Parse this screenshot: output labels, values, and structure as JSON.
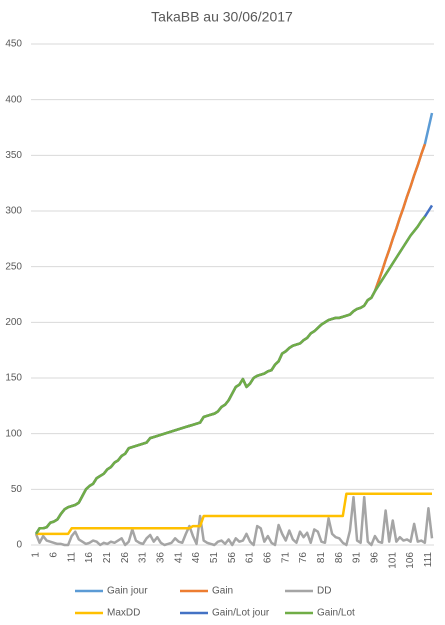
{
  "chart_data": {
    "type": "line",
    "title": "TakaBB au 30/06/2017",
    "x": [
      1,
      2,
      3,
      4,
      5,
      6,
      7,
      8,
      9,
      10,
      11,
      12,
      13,
      14,
      15,
      16,
      17,
      18,
      19,
      20,
      21,
      22,
      23,
      24,
      25,
      26,
      27,
      28,
      29,
      30,
      31,
      32,
      33,
      34,
      35,
      36,
      37,
      38,
      39,
      40,
      41,
      42,
      43,
      44,
      45,
      46,
      47,
      48,
      49,
      50,
      51,
      52,
      53,
      54,
      55,
      56,
      57,
      58,
      59,
      60,
      61,
      62,
      63,
      64,
      65,
      66,
      67,
      68,
      69,
      70,
      71,
      72,
      73,
      74,
      75,
      76,
      77,
      78,
      79,
      80,
      81,
      82,
      83,
      84,
      85,
      86,
      87,
      88,
      89,
      90,
      91,
      92,
      93,
      94,
      95,
      96,
      97,
      98,
      99,
      100,
      101,
      102,
      103,
      104,
      105,
      106,
      107,
      108,
      109,
      110,
      111,
      112
    ],
    "xlim": [
      1,
      112
    ],
    "xticks": [
      1,
      6,
      11,
      16,
      21,
      26,
      31,
      36,
      41,
      46,
      51,
      56,
      61,
      66,
      71,
      76,
      81,
      86,
      91,
      96,
      101,
      106,
      111
    ],
    "ylim": [
      0,
      450
    ],
    "yticks": [
      0,
      50,
      100,
      150,
      200,
      250,
      300,
      350,
      400,
      450
    ],
    "grid": true,
    "series": [
      {
        "name": "Gain jour",
        "color": "#5b9bd5",
        "values": [
          10,
          15,
          15,
          16,
          20,
          21,
          23,
          28,
          32,
          34,
          35,
          36,
          38,
          44,
          50,
          53,
          55,
          60,
          62,
          64,
          68,
          70,
          74,
          76,
          80,
          82,
          87,
          88,
          89,
          90,
          91,
          92,
          96,
          97,
          98,
          99,
          100,
          101,
          102,
          103,
          104,
          105,
          106,
          107,
          108,
          109,
          110,
          115,
          116,
          117,
          118,
          120,
          124,
          126,
          130,
          136,
          142,
          144,
          149,
          142,
          145,
          150,
          152,
          153,
          154,
          156,
          157,
          162,
          165,
          172,
          174,
          177,
          179,
          180,
          181,
          184,
          186,
          190,
          192,
          195,
          198,
          200,
          202,
          203,
          204,
          204,
          205,
          206,
          207,
          210,
          212,
          213,
          215,
          220,
          222,
          228,
          237,
          246,
          256,
          265,
          275,
          284,
          294,
          303,
          313,
          322,
          332,
          341,
          351,
          360,
          374,
          388
        ]
      },
      {
        "name": "Gain",
        "color": "#ed7d31",
        "values": [
          10,
          15,
          15,
          16,
          20,
          21,
          23,
          28,
          32,
          34,
          35,
          36,
          38,
          44,
          50,
          53,
          55,
          60,
          62,
          64,
          68,
          70,
          74,
          76,
          80,
          82,
          87,
          88,
          89,
          90,
          91,
          92,
          96,
          97,
          98,
          99,
          100,
          101,
          102,
          103,
          104,
          105,
          106,
          107,
          108,
          109,
          110,
          115,
          116,
          117,
          118,
          120,
          124,
          126,
          130,
          136,
          142,
          144,
          149,
          142,
          145,
          150,
          152,
          153,
          154,
          156,
          157,
          162,
          165,
          172,
          174,
          177,
          179,
          180,
          181,
          184,
          186,
          190,
          192,
          195,
          198,
          200,
          202,
          203,
          204,
          204,
          205,
          206,
          207,
          210,
          212,
          213,
          215,
          220,
          222,
          228,
          237,
          246,
          256,
          265,
          275,
          284,
          294,
          303,
          313,
          322,
          332,
          341,
          351,
          360,
          null,
          null
        ]
      },
      {
        "name": "DD",
        "color": "#a5a5a5",
        "values": [
          10,
          2,
          8,
          4,
          3,
          2,
          1,
          1,
          0,
          0,
          8,
          12,
          5,
          3,
          1,
          2,
          4,
          3,
          0,
          2,
          1,
          3,
          2,
          4,
          6,
          0,
          3,
          14,
          4,
          2,
          1,
          6,
          9,
          3,
          7,
          2,
          0,
          1,
          2,
          6,
          3,
          2,
          10,
          17,
          8,
          1,
          26,
          4,
          2,
          1,
          0,
          3,
          4,
          1,
          5,
          0,
          6,
          3,
          4,
          10,
          3,
          0,
          17,
          15,
          3,
          8,
          2,
          0,
          18,
          10,
          4,
          13,
          5,
          2,
          12,
          7,
          11,
          2,
          14,
          12,
          3,
          2,
          24,
          10,
          7,
          6,
          2,
          0,
          13,
          43,
          4,
          2,
          43,
          3,
          0,
          8,
          3,
          2,
          31,
          3,
          22,
          3,
          7,
          4,
          5,
          3,
          19,
          3,
          4,
          2,
          33,
          6
        ]
      },
      {
        "name": "MaxDD",
        "color": "#ffc000",
        "values": [
          10,
          10,
          10,
          10,
          10,
          10,
          10,
          10,
          10,
          10,
          15,
          15,
          15,
          15,
          15,
          15,
          15,
          15,
          15,
          15,
          15,
          15,
          15,
          15,
          15,
          15,
          15,
          15,
          15,
          15,
          15,
          15,
          15,
          15,
          15,
          15,
          15,
          15,
          15,
          15,
          15,
          15,
          15,
          15,
          17,
          17,
          17,
          26,
          26,
          26,
          26,
          26,
          26,
          26,
          26,
          26,
          26,
          26,
          26,
          26,
          26,
          26,
          26,
          26,
          26,
          26,
          26,
          26,
          26,
          26,
          26,
          26,
          26,
          26,
          26,
          26,
          26,
          26,
          26,
          26,
          26,
          26,
          26,
          26,
          26,
          26,
          26,
          46,
          46,
          46,
          46,
          46,
          46,
          46,
          46,
          46,
          46,
          46,
          46,
          46,
          46,
          46,
          46,
          46,
          46,
          46,
          46,
          46,
          46,
          46,
          46,
          46
        ]
      },
      {
        "name": "Gain/Lot jour",
        "color": "#4472c4",
        "values": [
          10,
          15,
          15,
          16,
          20,
          21,
          23,
          28,
          32,
          34,
          35,
          36,
          38,
          44,
          50,
          53,
          55,
          60,
          62,
          64,
          68,
          70,
          74,
          76,
          80,
          82,
          87,
          88,
          89,
          90,
          91,
          92,
          96,
          97,
          98,
          99,
          100,
          101,
          102,
          103,
          104,
          105,
          106,
          107,
          108,
          109,
          110,
          115,
          116,
          117,
          118,
          120,
          124,
          126,
          130,
          136,
          142,
          144,
          149,
          142,
          145,
          150,
          152,
          153,
          154,
          156,
          157,
          162,
          165,
          172,
          174,
          177,
          179,
          180,
          181,
          184,
          186,
          190,
          192,
          195,
          198,
          200,
          202,
          203,
          204,
          204,
          205,
          206,
          207,
          210,
          212,
          213,
          215,
          220,
          222,
          228,
          233,
          238,
          243,
          248,
          253,
          258,
          263,
          268,
          273,
          278,
          282,
          286,
          291,
          295,
          300,
          305
        ]
      },
      {
        "name": "Gain/Lot",
        "color": "#70ad47",
        "values": [
          10,
          15,
          15,
          16,
          20,
          21,
          23,
          28,
          32,
          34,
          35,
          36,
          38,
          44,
          50,
          53,
          55,
          60,
          62,
          64,
          68,
          70,
          74,
          76,
          80,
          82,
          87,
          88,
          89,
          90,
          91,
          92,
          96,
          97,
          98,
          99,
          100,
          101,
          102,
          103,
          104,
          105,
          106,
          107,
          108,
          109,
          110,
          115,
          116,
          117,
          118,
          120,
          124,
          126,
          130,
          136,
          142,
          144,
          149,
          142,
          145,
          150,
          152,
          153,
          154,
          156,
          157,
          162,
          165,
          172,
          174,
          177,
          179,
          180,
          181,
          184,
          186,
          190,
          192,
          195,
          198,
          200,
          202,
          203,
          204,
          204,
          205,
          206,
          207,
          210,
          212,
          213,
          215,
          220,
          222,
          228,
          233,
          238,
          243,
          248,
          253,
          258,
          263,
          268,
          273,
          278,
          282,
          286,
          291,
          295,
          null,
          null
        ]
      }
    ]
  }
}
